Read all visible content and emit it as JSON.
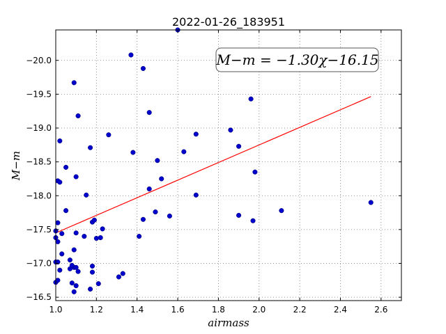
{
  "chart_data": {
    "type": "scatter",
    "title": "2022-01-26_183951",
    "xlabel": "airmass",
    "ylabel": "M−m",
    "xlim": [
      1.0,
      2.7
    ],
    "ylim": [
      -20.45,
      -16.45
    ],
    "y_inverted": true,
    "grid": true,
    "x_ticks": [
      "1.0",
      "1.2",
      "1.4",
      "1.6",
      "1.8",
      "2.0",
      "2.2",
      "2.4",
      "2.6"
    ],
    "y_ticks": [
      "−16.5",
      "−17.0",
      "−17.5",
      "−18.0",
      "−18.5",
      "−19.0",
      "−19.5",
      "−20.0"
    ],
    "annotation": "M−m = −1.30χ−16.15",
    "fit_line": {
      "slope": -1.3,
      "intercept": -16.15,
      "x_range": [
        1.0,
        2.55
      ],
      "color": "#ff0000"
    },
    "point_color": "#0000cc",
    "points": [
      [
        1.0,
        -16.72
      ],
      [
        1.01,
        -16.75
      ],
      [
        1.0,
        -17.02
      ],
      [
        1.01,
        -17.02
      ],
      [
        1.02,
        -16.9
      ],
      [
        1.03,
        -17.14
      ],
      [
        1.01,
        -17.32
      ],
      [
        1.0,
        -17.38
      ],
      [
        1.0,
        -17.48
      ],
      [
        1.01,
        -17.6
      ],
      [
        1.03,
        -17.44
      ],
      [
        1.05,
        -17.78
      ],
      [
        1.01,
        -18.22
      ],
      [
        1.02,
        -18.2
      ],
      [
        1.05,
        -18.42
      ],
      [
        1.02,
        -18.81
      ],
      [
        1.07,
        -16.92
      ],
      [
        1.08,
        -16.71
      ],
      [
        1.09,
        -16.58
      ],
      [
        1.1,
        -16.67
      ],
      [
        1.09,
        -16.94
      ],
      [
        1.08,
        -16.97
      ],
      [
        1.07,
        -17.05
      ],
      [
        1.1,
        -16.94
      ],
      [
        1.11,
        -16.88
      ],
      [
        1.09,
        -17.2
      ],
      [
        1.1,
        -17.45
      ],
      [
        1.14,
        -17.4
      ],
      [
        1.15,
        -18.01
      ],
      [
        1.1,
        -18.28
      ],
      [
        1.17,
        -18.71
      ],
      [
        1.11,
        -19.18
      ],
      [
        1.09,
        -19.67
      ],
      [
        1.17,
        -16.62
      ],
      [
        1.18,
        -16.87
      ],
      [
        1.21,
        -16.7
      ],
      [
        1.18,
        -16.96
      ],
      [
        1.2,
        -17.37
      ],
      [
        1.22,
        -17.38
      ],
      [
        1.23,
        -17.51
      ],
      [
        1.18,
        -17.61
      ],
      [
        1.19,
        -17.64
      ],
      [
        1.26,
        -18.9
      ],
      [
        1.31,
        -16.8
      ],
      [
        1.33,
        -16.85
      ],
      [
        1.41,
        -17.4
      ],
      [
        1.43,
        -17.65
      ],
      [
        1.49,
        -17.76
      ],
      [
        1.46,
        -18.1
      ],
      [
        1.52,
        -18.25
      ],
      [
        1.5,
        -18.52
      ],
      [
        1.38,
        -18.64
      ],
      [
        1.46,
        -19.23
      ],
      [
        1.43,
        -19.88
      ],
      [
        1.37,
        -20.08
      ],
      [
        1.56,
        -17.7
      ],
      [
        1.6,
        -20.45
      ],
      [
        1.63,
        -18.65
      ],
      [
        1.69,
        -18.01
      ],
      [
        1.69,
        -18.91
      ],
      [
        1.9,
        -17.71
      ],
      [
        1.97,
        -17.63
      ],
      [
        1.98,
        -18.35
      ],
      [
        1.9,
        -18.73
      ],
      [
        1.86,
        -18.97
      ],
      [
        1.96,
        -19.43
      ],
      [
        2.11,
        -17.78
      ],
      [
        2.55,
        -17.9
      ]
    ]
  }
}
